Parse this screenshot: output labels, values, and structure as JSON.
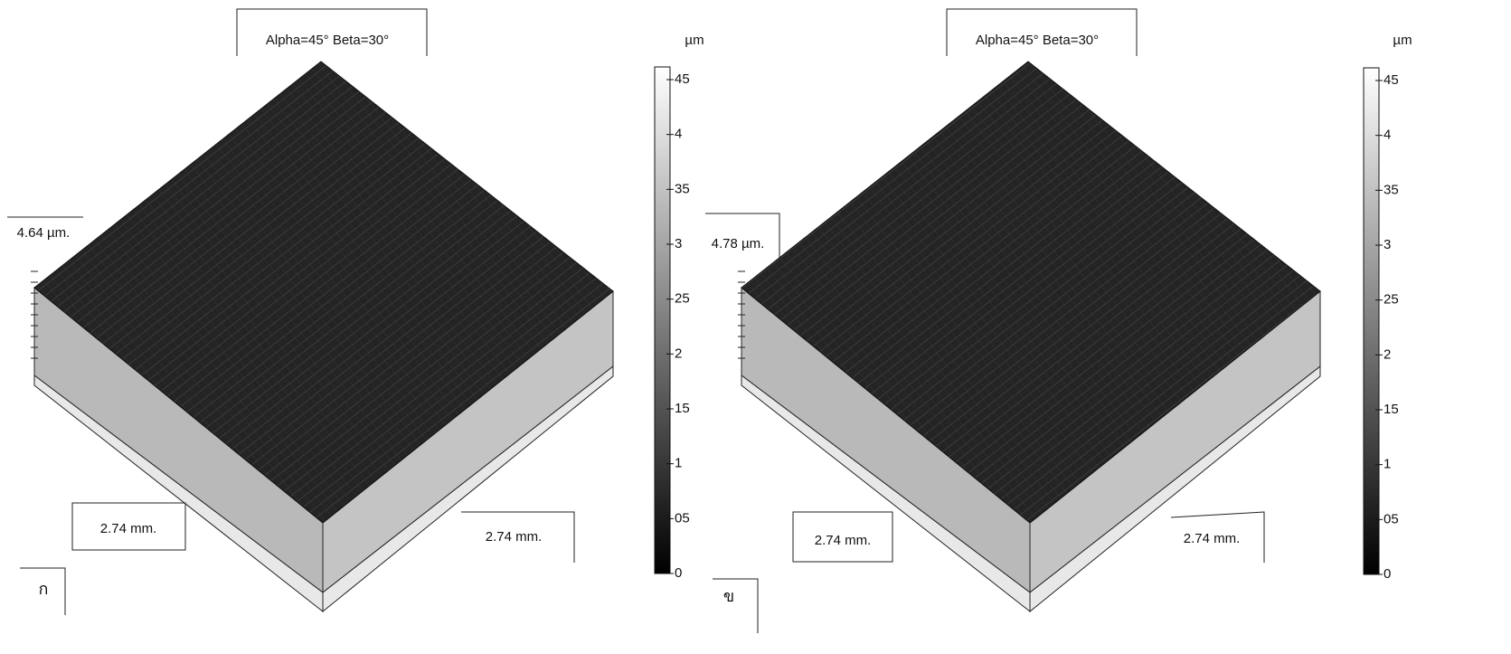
{
  "panels": [
    {
      "title": "Alpha=45° Beta=30°",
      "unit": "µm",
      "colorbar_labels": [
        "45",
        "4",
        "35",
        "3",
        "25",
        "2",
        "15",
        "1",
        "05",
        "0"
      ],
      "height_label": "4.64 µm.",
      "x_label": "2.74 mm.",
      "y_label": "2.74 mm.",
      "label": "ก"
    },
    {
      "title": "Alpha=45° Beta=30°",
      "unit": "µm",
      "colorbar_labels": [
        "45",
        "4",
        "35",
        "3",
        "25",
        "2",
        "15",
        "1",
        "05",
        "0"
      ],
      "height_label": "4.78 µm.",
      "x_label": "2.74 mm.",
      "y_label": "2.74 mm.",
      "label": "ข"
    }
  ]
}
